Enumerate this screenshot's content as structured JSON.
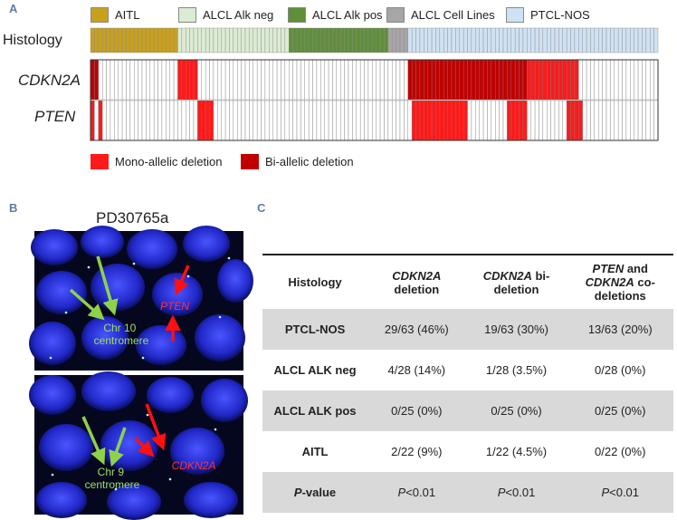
{
  "panels": {
    "a": "A",
    "b": "B",
    "c": "C"
  },
  "legend": [
    {
      "label": "AITL",
      "color": "#c9a01c"
    },
    {
      "label": "ALCL Alk neg",
      "color": "#dcebd3"
    },
    {
      "label": "ALCL Alk pos",
      "color": "#5f8f38"
    },
    {
      "label": "ALCL Cell Lines",
      "color": "#a6a6a6"
    },
    {
      "label": "PTCL-NOS",
      "color": "#cfe2f3"
    }
  ],
  "histology_label": "Histology",
  "histology_segments": [
    {
      "group": "AITL",
      "count": 22,
      "color": "#c9a01c"
    },
    {
      "group": "ALCL Alk neg",
      "count": 28,
      "color": "#dcebd3"
    },
    {
      "group": "ALCL Alk pos",
      "count": 25,
      "color": "#5f8f38"
    },
    {
      "group": "ALCL Cell Lines",
      "count": 5,
      "color": "#a6a6a6"
    },
    {
      "group": "PTCL-NOS",
      "count": 63,
      "color": "#cfe2f3"
    }
  ],
  "genes": [
    {
      "label": "CDKN2A",
      "bi_ranges": [
        [
          0,
          1
        ],
        [
          80,
          109
        ]
      ],
      "mono_ranges": [
        [
          22,
          26
        ],
        [
          110,
          122
        ]
      ]
    },
    {
      "label": "PTEN",
      "bi_ranges": [],
      "mono_ranges": [
        [
          0,
          0
        ],
        [
          2,
          2
        ],
        [
          27,
          30
        ],
        [
          81,
          94
        ],
        [
          105,
          109
        ],
        [
          120,
          123
        ]
      ]
    }
  ],
  "deletion_legend": [
    {
      "label": "Mono-allelic deletion",
      "color": "#ff1a1a"
    },
    {
      "label": "Bi-allelic deletion",
      "color": "#c00000"
    }
  ],
  "fish": {
    "title": "PD30765a",
    "top": {
      "gene": "PTEN",
      "centromere": "Chr 10 centromere",
      "centromere_lines": [
        "Chr 10",
        "centromere"
      ]
    },
    "bottom": {
      "gene": "CDKN2A",
      "centromere": "Chr 9 centromere",
      "centromere_lines": [
        "Chr 9",
        "centromere"
      ]
    }
  },
  "table": {
    "headers": [
      {
        "lines": [
          "Histology"
        ]
      },
      {
        "lines": [
          "CDKN2A",
          "deletion"
        ]
      },
      {
        "lines": [
          "CDKN2A bi-",
          "deletion"
        ]
      },
      {
        "lines": [
          "PTEN and",
          "CDKN2A co-",
          "deletions"
        ]
      }
    ],
    "rows": [
      {
        "cells": [
          "PTCL-NOS",
          "29/63 (46%)",
          "19/63 (30%)",
          "13/63 (20%)"
        ],
        "shaded": true
      },
      {
        "cells": [
          "ALCL ALK neg",
          "4/28 (14%)",
          "1/28 (3.5%)",
          "0/28 (0%)"
        ],
        "shaded": false
      },
      {
        "cells": [
          "ALCL ALK pos",
          "0/25 (0%)",
          "0/25 (0%)",
          "0/25 (0%)"
        ],
        "shaded": true
      },
      {
        "cells": [
          "AITL",
          "2/22 (9%)",
          "1/22 (4.5%)",
          "0/22 (0%)"
        ],
        "shaded": false
      },
      {
        "cells": [
          "P-value",
          "P<0.01",
          "P<0.01",
          "P<0.01"
        ],
        "shaded": true
      }
    ]
  }
}
